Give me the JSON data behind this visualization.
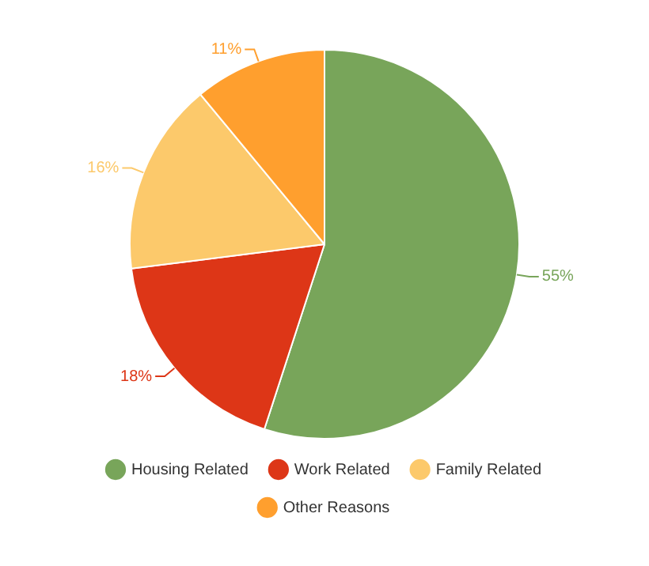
{
  "chart_data": {
    "type": "pie",
    "categories": [
      "Housing Related",
      "Work Related",
      "Family Related",
      "Other Reasons"
    ],
    "values": [
      55,
      18,
      16,
      11
    ],
    "colors": [
      "#78a55a",
      "#dd3617",
      "#fcc96b",
      "#ff9f2e"
    ],
    "value_labels": [
      "55%",
      "18%",
      "16%",
      "11%"
    ],
    "legend": "bottom"
  }
}
